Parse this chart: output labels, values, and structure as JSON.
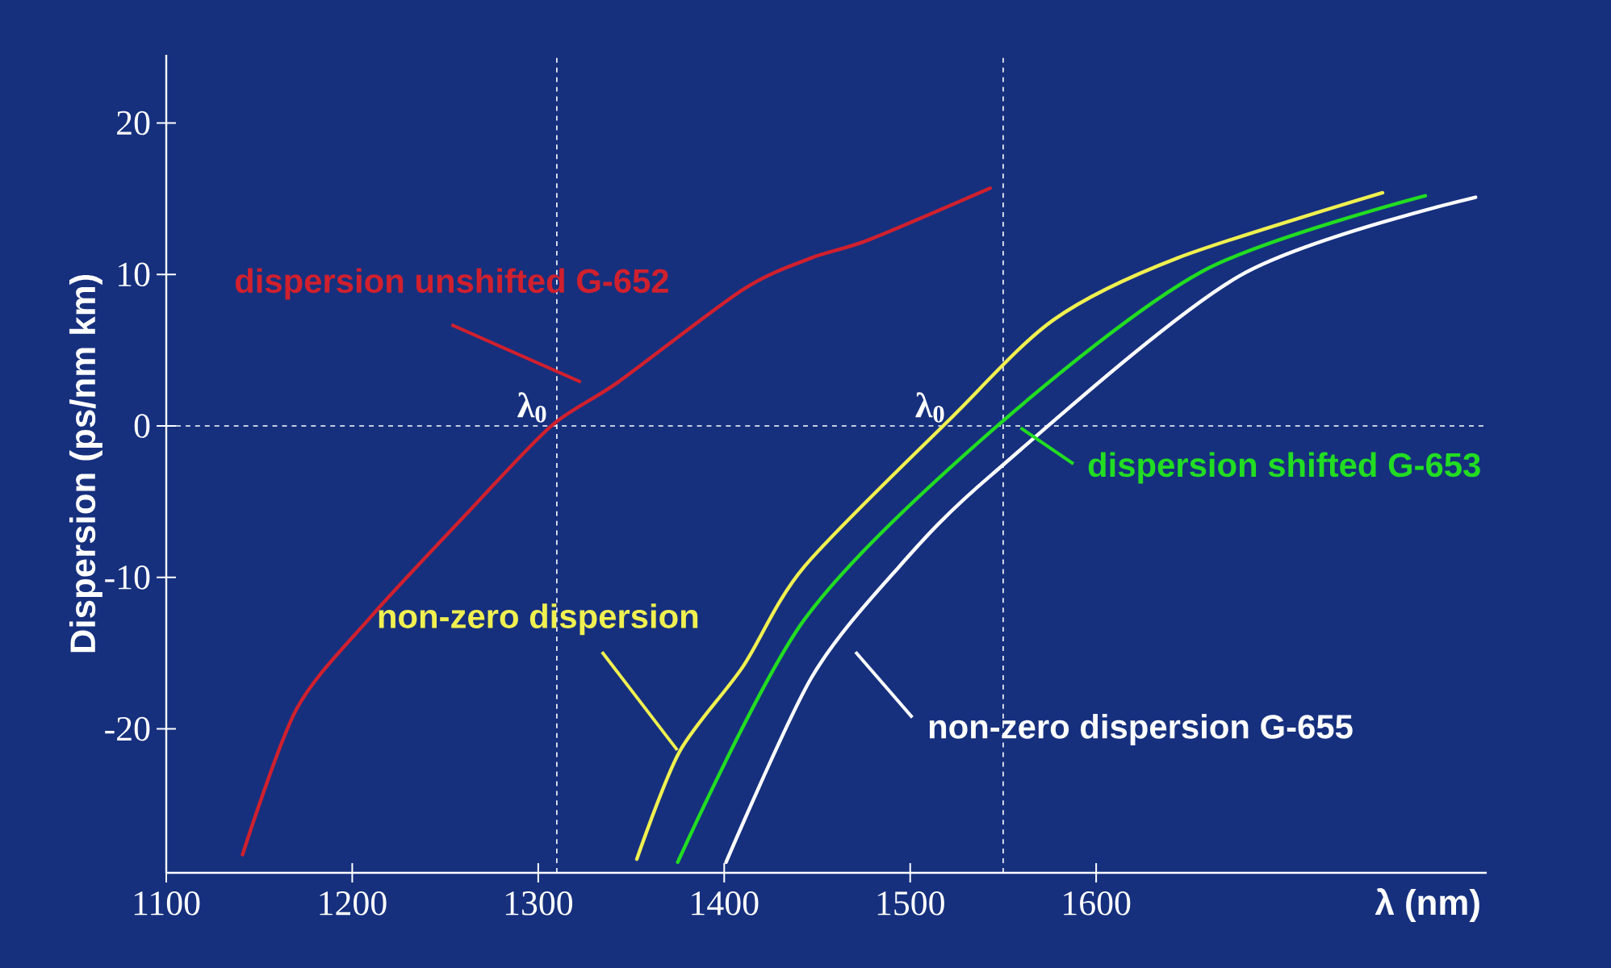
{
  "chart_data": {
    "type": "line",
    "xlabel": "λ (nm)",
    "ylabel": "Dispersion (ps/nm km)",
    "xlim": [
      1100,
      1810
    ],
    "ylim": [
      -29.5,
      24.5
    ],
    "xticks": [
      1100,
      1200,
      1300,
      1400,
      1500,
      1600
    ],
    "yticks": [
      -20,
      -10,
      0,
      10,
      20
    ],
    "grid": false,
    "marker": "none",
    "line_style": "solid",
    "series": [
      {
        "name": "dispersion unshifted G-652",
        "color": "#d0202e",
        "x": [
          1141,
          1170,
          1210,
          1263,
          1307,
          1343,
          1410,
          1447,
          1478,
          1543
        ],
        "values": [
          -28.3,
          -18.7,
          -12.6,
          -5.6,
          0,
          2.9,
          9.0,
          11.1,
          12.3,
          15.7
        ]
      },
      {
        "name": "non-zero dispersion",
        "color": "#f0f050",
        "x": [
          1353,
          1376,
          1410,
          1443,
          1521,
          1577,
          1644,
          1754
        ],
        "values": [
          -28.6,
          -21.5,
          -15.9,
          -9.3,
          0.4,
          7.0,
          11.1,
          15.4
        ]
      },
      {
        "name": "dispersion shifted G-653",
        "color": "#22dd22",
        "x": [
          1375,
          1443,
          1544,
          1657,
          1777
        ],
        "values": [
          -28.8,
          -12.8,
          -0.3,
          10.2,
          15.2
        ]
      },
      {
        "name": "non-zero dispersion G-655",
        "color": "#ffffff",
        "x": [
          1401,
          1447,
          1494,
          1544,
          1677,
          1804
        ],
        "values": [
          -28.8,
          -16.6,
          -9.3,
          -3.2,
          9.9,
          15.1
        ]
      }
    ],
    "ref_lines": [
      {
        "axis": "x",
        "value": 1310,
        "color": "#ffffff",
        "line_style": "dashed"
      },
      {
        "axis": "x",
        "value": 1550,
        "color": "#ffffff",
        "line_style": "dashed"
      },
      {
        "axis": "y",
        "value": 0,
        "color": "#ffffff",
        "line_style": "dashed"
      }
    ],
    "annotations": [
      {
        "text": "λ$_{0}$",
        "x": 1307,
        "y": 0
      },
      {
        "text": "λ$_{0}$",
        "x": 1521,
        "y": 0
      }
    ]
  }
}
